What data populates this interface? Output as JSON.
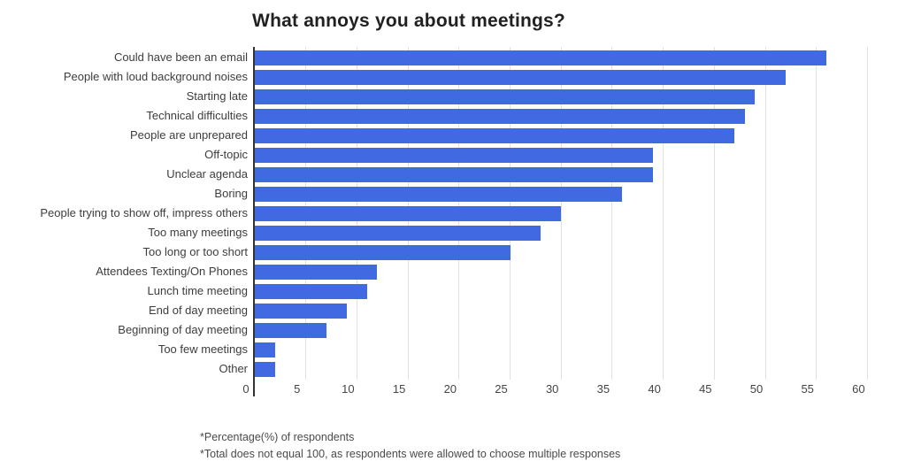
{
  "title": "What annoys you about meetings?",
  "footnotes": [
    "*Percentage(%) of respondents",
    "*Total does not equal 100, as respondents were allowed to choose multiple responses"
  ],
  "colors": {
    "bar": "#4169e1",
    "axis_line": "#333333",
    "gridline": "#e2e2e2",
    "title_text": "#212121",
    "category_text": "#3d3d3d",
    "tick_text": "#444444",
    "footnote_text": "#4a4a4a",
    "background": "#ffffff"
  },
  "chart_data": {
    "type": "bar",
    "orientation": "horizontal",
    "title": "What annoys you about meetings?",
    "categories": [
      "Could have been an email",
      "People with loud background noises",
      "Starting late",
      "Technical difficulties",
      "People are unprepared",
      "Off-topic",
      "Unclear agenda",
      "Boring",
      "People trying to show off, impress others",
      "Too many meetings",
      "Too long or too short",
      "Attendees Texting/On Phones",
      "Lunch time meeting",
      "End of day meeting",
      "Beginning of day meeting",
      "Too few meetings",
      "Other"
    ],
    "values": [
      56,
      52,
      49,
      48,
      47,
      39,
      39,
      36,
      30,
      28,
      25,
      12,
      11,
      9,
      7,
      2,
      2
    ],
    "xlabel": "",
    "ylabel": "",
    "xlim": [
      0,
      60
    ],
    "xticks": [
      0,
      5,
      10,
      15,
      20,
      25,
      30,
      35,
      40,
      45,
      50,
      55,
      60
    ],
    "grid": true,
    "legend": false,
    "units": "percent"
  }
}
